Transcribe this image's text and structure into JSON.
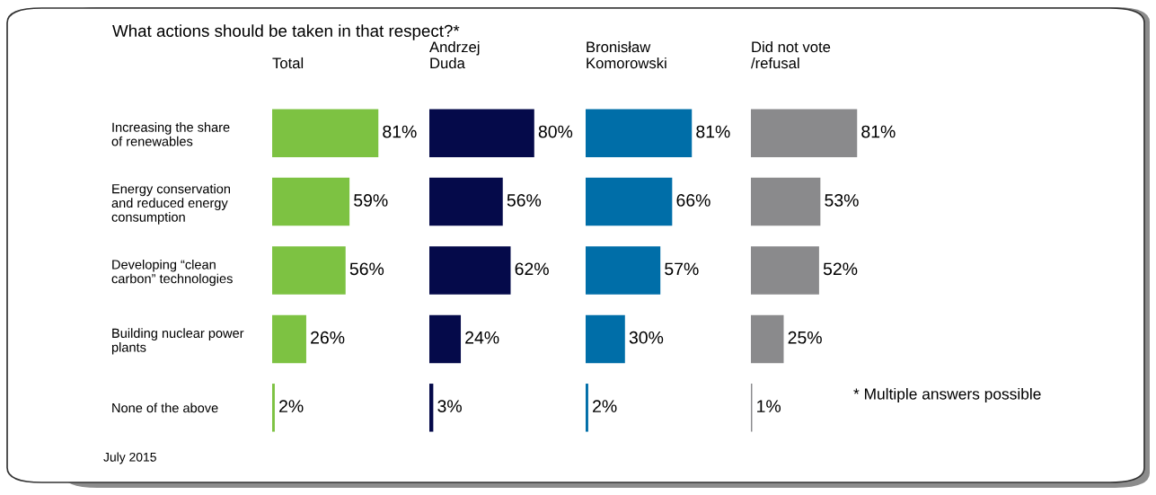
{
  "chart_data": [
    {
      "type": "bar",
      "orientation": "horizontal",
      "title": "Total",
      "categories": [
        "Increasing the share\nof renewables",
        "Energy conservation\nand reduced energy\nconsumption",
        "Developing “clean\ncarbon” technologies",
        "Building nuclear power\nplants",
        "None of the above"
      ],
      "values": [
        81,
        59,
        56,
        26,
        2
      ],
      "value_labels": [
        "81%",
        "59%",
        "56%",
        "26%",
        "2%"
      ],
      "color": "#7dc242",
      "annotations": [
        "What actions should be taken in that respect?*",
        "* Multiple answers possible",
        "July 2015"
      ]
    },
    {
      "type": "bar",
      "orientation": "horizontal",
      "title": "Andrzej\nDuda",
      "categories": [
        null,
        null,
        null,
        null,
        null
      ],
      "values": [
        80,
        56,
        62,
        24,
        3
      ],
      "value_labels": [
        "80%",
        "56%",
        "62%",
        "24%",
        "3%"
      ],
      "color": "#050a4a"
    },
    {
      "type": "bar",
      "orientation": "horizontal",
      "title": "Bronisław\nKomorowski",
      "categories": [
        null,
        null,
        null,
        null,
        null
      ],
      "values": [
        81,
        66,
        57,
        30,
        2
      ],
      "value_labels": [
        "81%",
        "66%",
        "57%",
        "30%",
        "2%"
      ],
      "color": "#006ea8"
    },
    {
      "type": "bar",
      "orientation": "horizontal",
      "title": "Did not vote\n/refusal",
      "categories": [
        null,
        null,
        null,
        null,
        null
      ],
      "values": [
        81,
        53,
        52,
        25,
        1
      ],
      "value_labels": [
        "81%",
        "53%",
        "52%",
        "25%",
        "1%"
      ],
      "color": "#8a8a8c"
    }
  ]
}
